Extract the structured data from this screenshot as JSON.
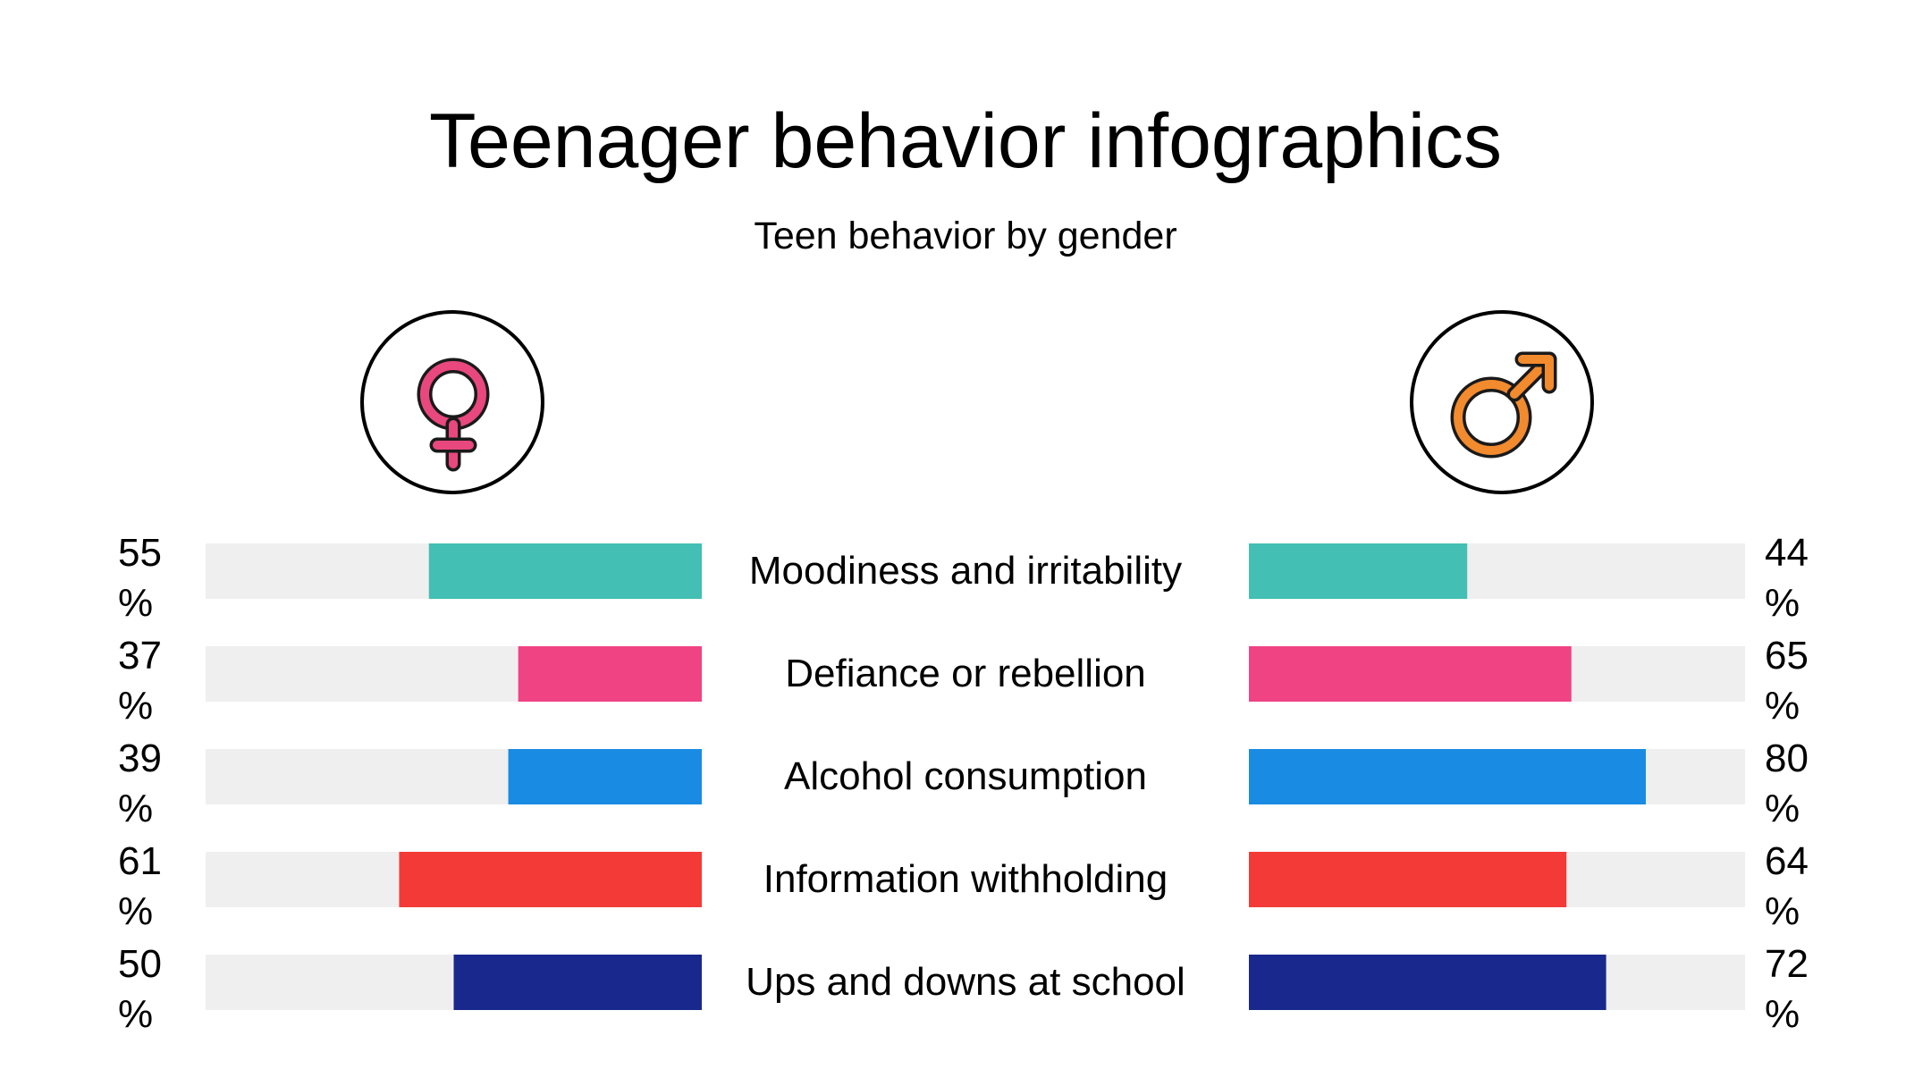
{
  "title": "Teenager behavior infographics",
  "subtitle": "Teen behavior by gender",
  "icons": {
    "female": "female-symbol-icon",
    "male": "male-symbol-icon"
  },
  "colors": {
    "track": "#efefef",
    "female_icon": "#e8487e",
    "male_icon": "#f28a2e",
    "icon_outline": "#1a1a1a"
  },
  "chart_data": {
    "type": "bar",
    "title": "Teenager behavior infographics",
    "subtitle": "Teen behavior by gender",
    "categories": [
      "Moodiness and irritability",
      "Defiance or rebellion",
      "Alcohol consumption",
      "Information withholding",
      "Ups and downs at school"
    ],
    "series": [
      {
        "values": [
          55,
          37,
          39,
          61,
          50
        ]
      },
      {
        "values": [
          44,
          65,
          80,
          64,
          72
        ]
      }
    ],
    "bar_colors": [
      "#43bfb3",
      "#f04384",
      "#1a8be3",
      "#f43a36",
      "#19288c"
    ],
    "unit": "%",
    "xlim": [
      0,
      100
    ],
    "layout": "mirrored",
    "grid": false,
    "legend": "none"
  }
}
